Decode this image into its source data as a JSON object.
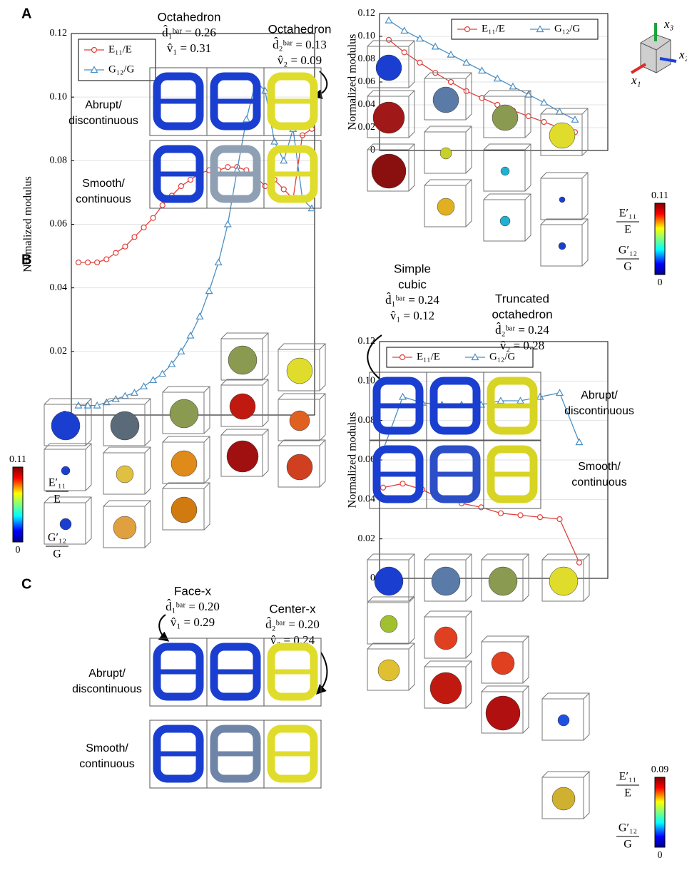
{
  "chart_data": [
    {
      "type": "line",
      "y_label": "Normalized modulus",
      "legend": "upper right",
      "grid": true,
      "categories": [
        null,
        null,
        null,
        null,
        null,
        null,
        null,
        null,
        null,
        null,
        null,
        null,
        null
      ],
      "ylim": [
        0,
        0.12
      ],
      "yticks": [
        0,
        0.02,
        0.04,
        0.06,
        0.08,
        {
          "value": 0.1,
          "label": "0.10"
        },
        0.12
      ],
      "series": [
        {
          "name": "E₁₁/E",
          "color": "#e0403a",
          "marker": "circle",
          "values": [
            0.097,
            0.086,
            0.077,
            0.068,
            0.06,
            0.052,
            0.046,
            0.04,
            0.035,
            0.03,
            0.025,
            0.02,
            0.016
          ]
        },
        {
          "name": "G₁₂/G",
          "color": "#4a8fc4",
          "marker": "triangle",
          "values": [
            0.114,
            0.105,
            0.098,
            0.091,
            0.084,
            0.077,
            0.07,
            0.063,
            0.056,
            0.049,
            0.042,
            0.034,
            0.027
          ]
        }
      ]
    },
    {
      "type": "line",
      "y_label": "Normalized modulus",
      "legend": "upper left",
      "grid": true,
      "categories": [
        null,
        null,
        null,
        null,
        null,
        null,
        null,
        null,
        null,
        null,
        null,
        null,
        null,
        null,
        null,
        null,
        null,
        null,
        null,
        null,
        null,
        null,
        null,
        null,
        null,
        null
      ],
      "ylim": [
        0,
        0.12
      ],
      "yticks": [
        0,
        0.02,
        0.04,
        0.06,
        0.08,
        {
          "value": 0.1,
          "label": "0.10"
        },
        0.12
      ],
      "series": [
        {
          "name": "E₁₁/E",
          "color": "#e0403a",
          "marker": "circle",
          "values": [
            0.048,
            0.048,
            0.048,
            0.049,
            0.051,
            0.053,
            0.056,
            0.059,
            0.062,
            0.066,
            0.069,
            0.072,
            0.074,
            0.076,
            0.077,
            0.077,
            0.078,
            0.078,
            0.077,
            0.075,
            0.072,
            0.074,
            0.071,
            0.068,
            0.088,
            0.09
          ]
        },
        {
          "name": "G₁₂/G",
          "color": "#4a8fc4",
          "marker": "triangle",
          "values": [
            0.003,
            0.003,
            0.003,
            0.004,
            0.005,
            0.006,
            0.007,
            0.009,
            0.011,
            0.013,
            0.016,
            0.02,
            0.025,
            0.031,
            0.039,
            0.048,
            0.06,
            0.077,
            0.093,
            0.105,
            0.102,
            0.086,
            0.08,
            0.09,
            0.068,
            0.065
          ]
        }
      ]
    },
    {
      "type": "line",
      "y_label": "Normalized modulus",
      "legend": "upper left",
      "grid": true,
      "categories": [
        null,
        null,
        null,
        null,
        null,
        null,
        null,
        null,
        null,
        null,
        null
      ],
      "ylim": [
        0,
        0.12
      ],
      "yticks": [
        0,
        0.02,
        0.04,
        0.06,
        0.08,
        {
          "value": 0.1,
          "label": "0.10"
        },
        0.12
      ],
      "series": [
        {
          "name": "E₁₁/E",
          "color": "#e0403a",
          "marker": "circle",
          "values": [
            0.046,
            0.048,
            0.045,
            0.04,
            0.038,
            0.036,
            0.033,
            0.032,
            0.031,
            0.03,
            0.008
          ]
        },
        {
          "name": "G₁₂/G",
          "color": "#4a8fc4",
          "marker": "triangle",
          "values": [
            0.065,
            0.092,
            0.089,
            0.088,
            0.088,
            0.088,
            0.09,
            0.09,
            0.092,
            0.094,
            0.069
          ]
        }
      ]
    }
  ],
  "panels": [
    {
      "label": "A",
      "annotations": [
        {
          "lines": [
            "Octahedron",
            "d̂₁ᵇᵃʳ = 0.26",
            "v̂₁ = 0.31"
          ]
        },
        {
          "lines": [
            "Octahedron",
            "d̂₂ᵇᵃʳ = 0.13",
            "v̂₂ = 0.09"
          ]
        }
      ],
      "rows": [
        [
          "Abrupt/",
          "discontinuous"
        ],
        [
          "Smooth/",
          "continuous"
        ]
      ],
      "colorbar": {
        "max": 0.11,
        "min": 0,
        "labels": [
          {
            "num": "E′₁₁",
            "den": "E"
          },
          {
            "num": "G′₁₂",
            "den": "G"
          }
        ]
      },
      "axes": [
        "x₁",
        "x₂",
        "x₃"
      ]
    },
    {
      "label": "B",
      "annotations": [
        {
          "lines": [
            "Simple",
            "cubic",
            "d̂₁ᵇᵃʳ = 0.24",
            "v̂₁ = 0.12"
          ]
        },
        {
          "lines": [
            "Truncated",
            "octahedron",
            "d̂₂ᵇᵃʳ = 0.24",
            "v̂₂ = 0.28"
          ]
        }
      ],
      "rows": [
        [
          "Abrupt/",
          "discontinuous"
        ],
        [
          "Smooth/",
          "continuous"
        ]
      ],
      "colorbar": {
        "max": 0.11,
        "min": 0,
        "labels": [
          {
            "num": "E′₁₁",
            "den": "E"
          },
          {
            "num": "G′₁₂",
            "den": "G"
          }
        ]
      }
    },
    {
      "label": "C",
      "annotations": [
        {
          "lines": [
            "Face-x",
            "d̂₁ᵇᵃʳ = 0.20",
            "v̂₁ = 0.29"
          ]
        },
        {
          "lines": [
            "Center-x",
            "d̂₂ᵇᵃʳ = 0.20",
            "v̂₂ = 0.24"
          ]
        }
      ],
      "rows": [
        [
          "Abrupt/",
          "discontinuous"
        ],
        [
          "Smooth/",
          "continuous"
        ]
      ],
      "colorbar": {
        "max": 0.09,
        "min": 0,
        "labels": [
          {
            "num": "E′₁₁",
            "den": "E"
          },
          {
            "num": "G′₁₂",
            "den": "G"
          }
        ]
      }
    }
  ]
}
